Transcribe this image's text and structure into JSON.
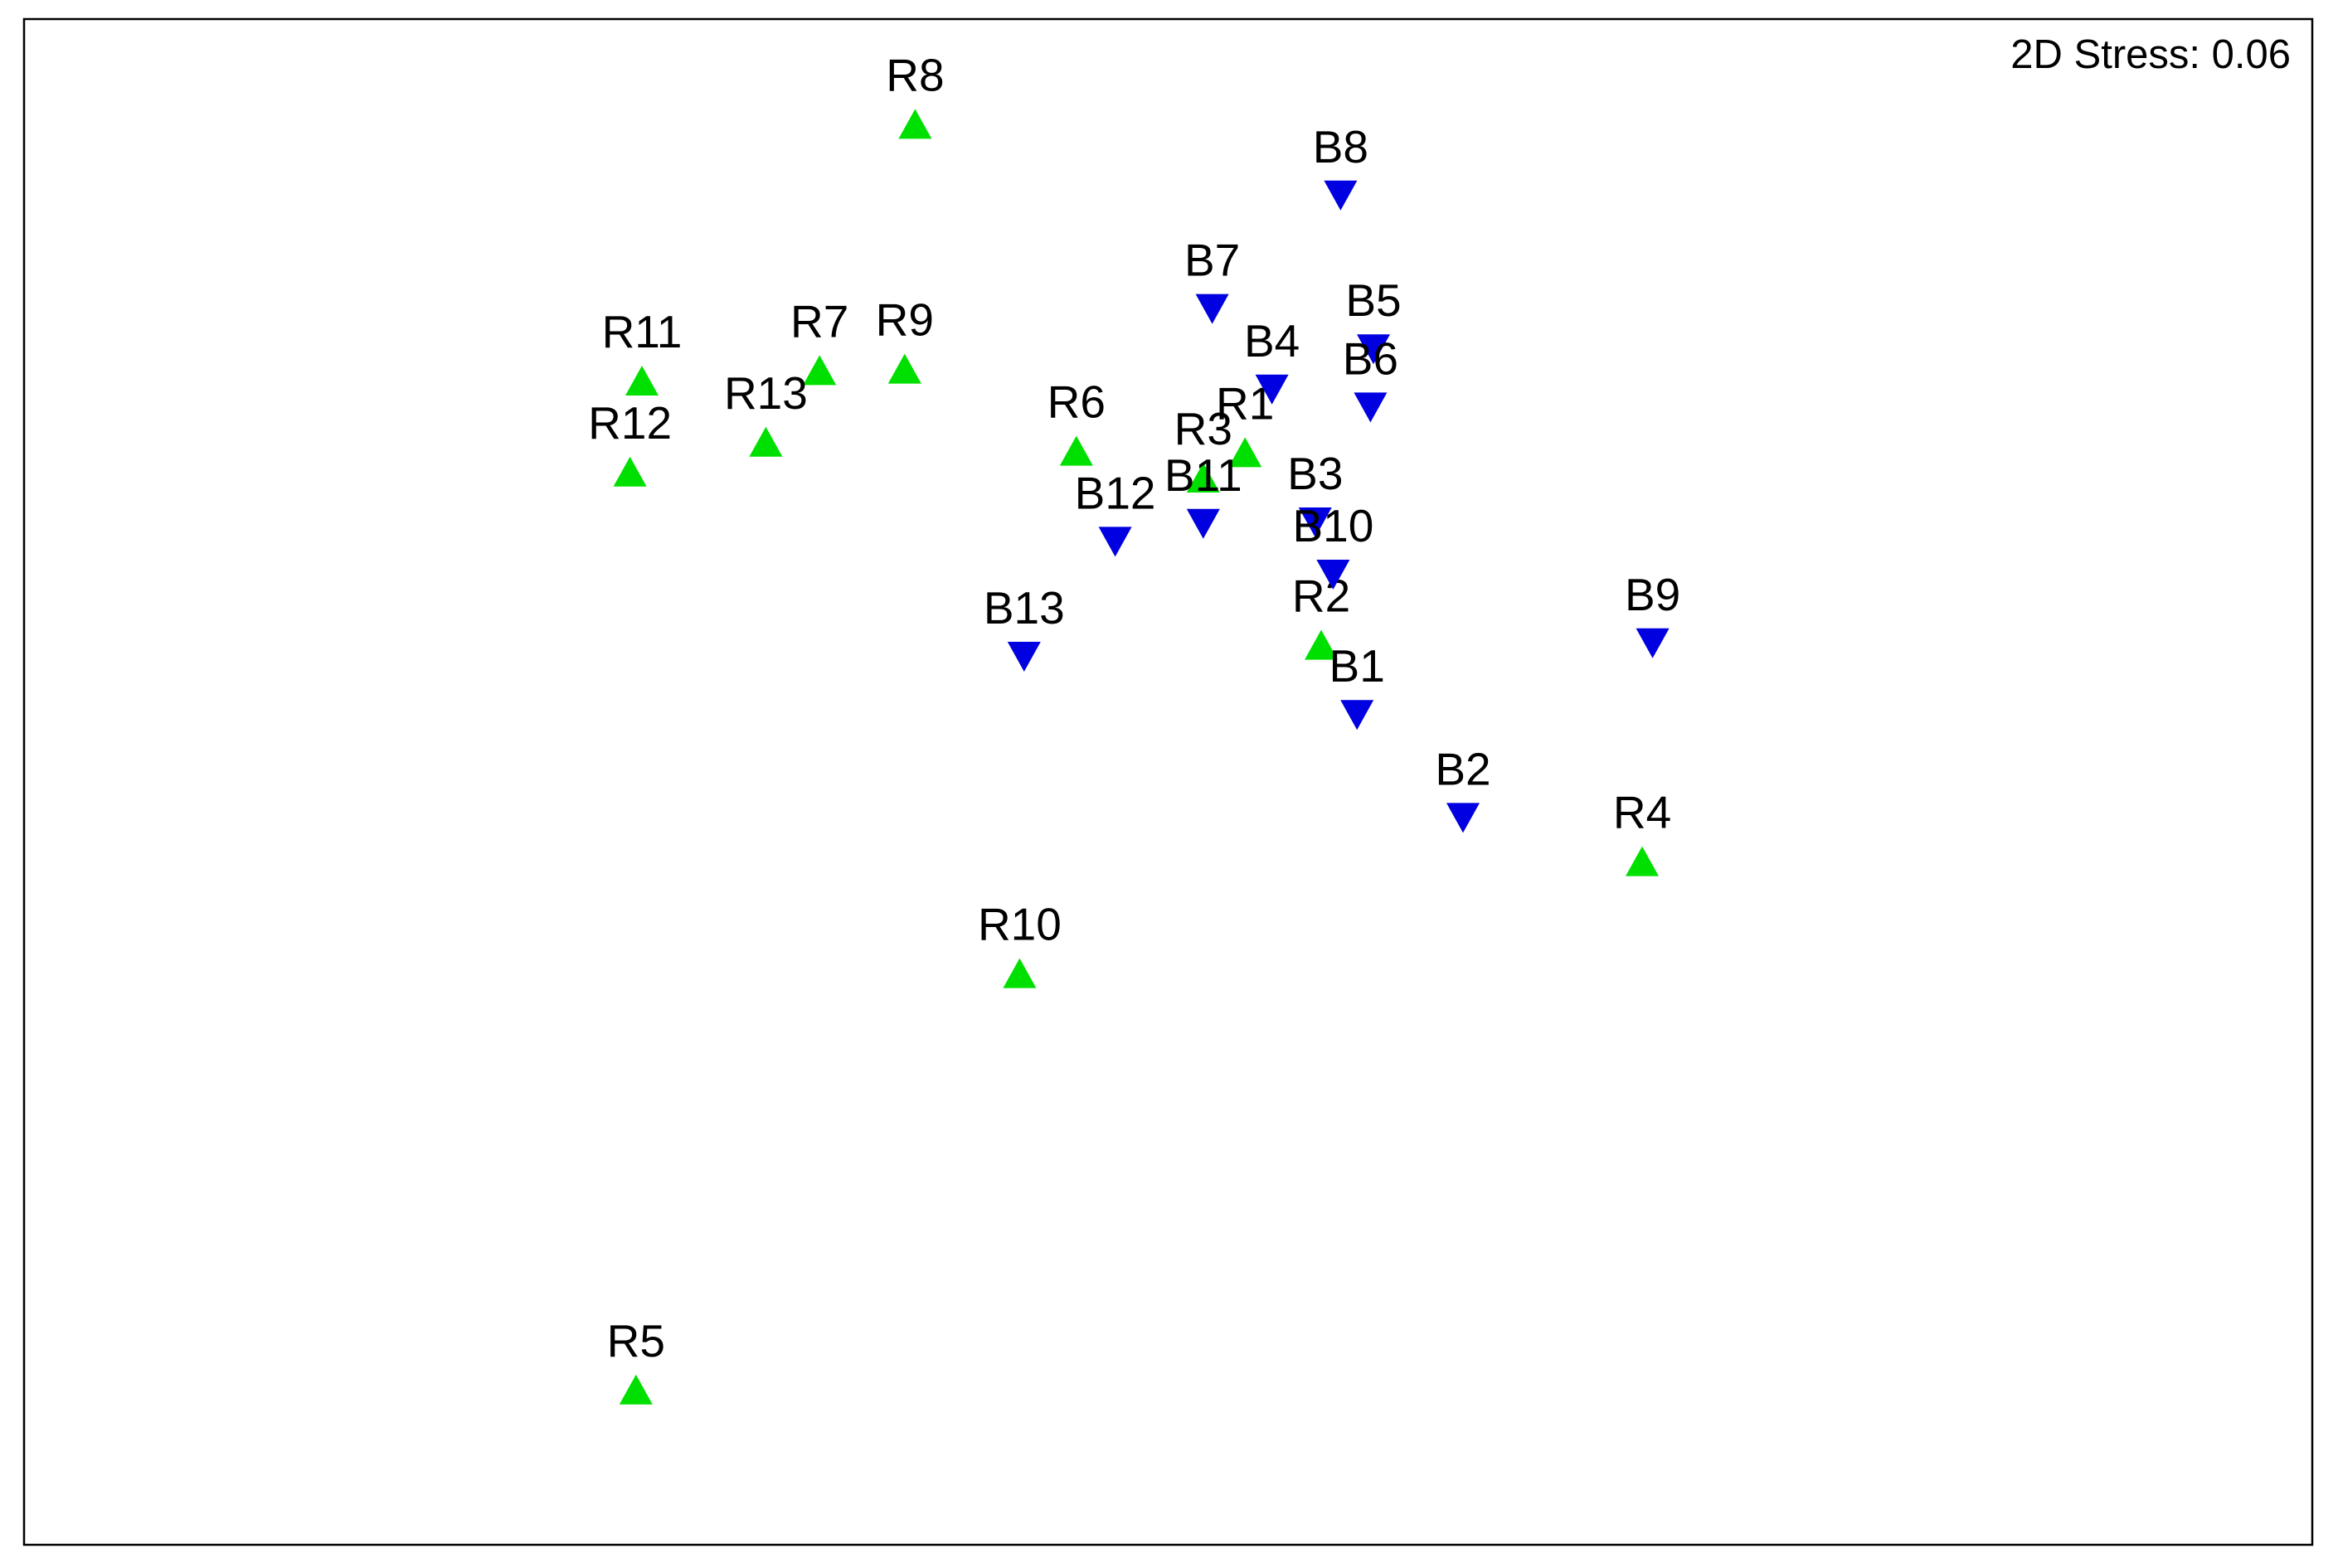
{
  "chart_data": {
    "type": "scatter",
    "title": "",
    "xlabel": "",
    "ylabel": "",
    "annotation": "2D Stress: 0.06",
    "grid": false,
    "axes_visible": false,
    "xlim": [
      0,
      1530
    ],
    "ylim": [
      -1020,
      0
    ],
    "series": [
      {
        "name": "",
        "marker": "triangle-up",
        "color": "#00e000",
        "points": [
          {
            "label": "R8",
            "x": 613,
            "y": -83
          },
          {
            "label": "R11",
            "x": 430,
            "y": -255
          },
          {
            "label": "R7",
            "x": 549,
            "y": -248
          },
          {
            "label": "R9",
            "x": 606,
            "y": -247
          },
          {
            "label": "R13",
            "x": 513,
            "y": -296
          },
          {
            "label": "R12",
            "x": 422,
            "y": -316
          },
          {
            "label": "R6",
            "x": 721,
            "y": -302
          },
          {
            "label": "R1",
            "x": 834,
            "y": -303
          },
          {
            "label": "R3",
            "x": 806,
            "y": -320
          },
          {
            "label": "R2",
            "x": 885,
            "y": -432
          },
          {
            "label": "R4",
            "x": 1100,
            "y": -577
          },
          {
            "label": "R10",
            "x": 683,
            "y": -652
          },
          {
            "label": "R5",
            "x": 426,
            "y": -931
          }
        ]
      },
      {
        "name": "",
        "marker": "triangle-down",
        "color": "#0000e0",
        "points": [
          {
            "label": "B8",
            "x": 898,
            "y": -131
          },
          {
            "label": "B7",
            "x": 812,
            "y": -207
          },
          {
            "label": "B5",
            "x": 920,
            "y": -234
          },
          {
            "label": "B4",
            "x": 852,
            "y": -261
          },
          {
            "label": "B6",
            "x": 918,
            "y": -273
          },
          {
            "label": "B3",
            "x": 881,
            "y": -350
          },
          {
            "label": "B11",
            "x": 806,
            "y": -351
          },
          {
            "label": "B12",
            "x": 747,
            "y": -363
          },
          {
            "label": "B10",
            "x": 893,
            "y": -385
          },
          {
            "label": "B13",
            "x": 686,
            "y": -440
          },
          {
            "label": "B9",
            "x": 1107,
            "y": -431
          },
          {
            "label": "B1",
            "x": 909,
            "y": -479
          },
          {
            "label": "B2",
            "x": 980,
            "y": -548
          }
        ]
      }
    ]
  }
}
